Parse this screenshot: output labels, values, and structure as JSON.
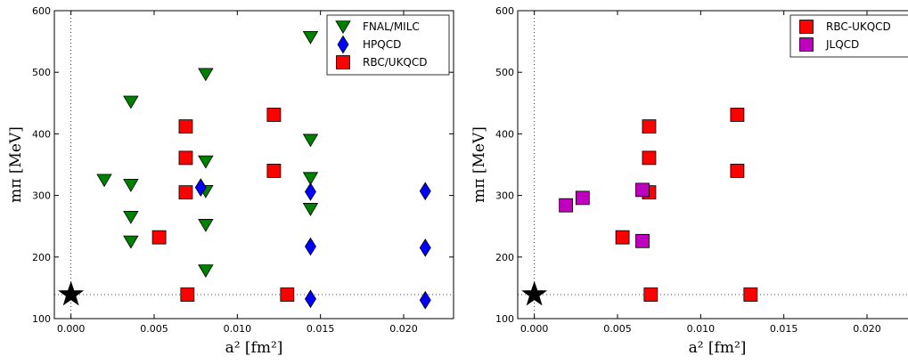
{
  "chart_data": [
    {
      "type": "scatter",
      "xlabel": "a² [fm²]",
      "ylabel": "mπ [MeV]",
      "xlim": [
        -0.001,
        0.023
      ],
      "ylim": [
        100,
        600
      ],
      "x_ticks": [
        "0.000",
        "0.005",
        "0.010",
        "0.015",
        "0.020"
      ],
      "y_ticks": [
        "100",
        "200",
        "300",
        "400",
        "500",
        "600"
      ],
      "legend_placement": "top-right",
      "reference_lines": {
        "x": 0.0,
        "y": 139
      },
      "physical_point": {
        "x": 0.0,
        "y": 139,
        "marker": "star",
        "color": "#000000"
      },
      "series": [
        {
          "name": "FNAL/MILC",
          "marker": "triangle-down",
          "color": "#008000",
          "points": [
            [
              0.002,
              325
            ],
            [
              0.0036,
              452
            ],
            [
              0.0036,
              317
            ],
            [
              0.0036,
              265
            ],
            [
              0.0036,
              225
            ],
            [
              0.0081,
              497
            ],
            [
              0.0081,
              355
            ],
            [
              0.0081,
              307
            ],
            [
              0.0081,
              252
            ],
            [
              0.0081,
              178
            ],
            [
              0.0144,
              557
            ],
            [
              0.0144,
              390
            ],
            [
              0.0144,
              328
            ],
            [
              0.0144,
              278
            ]
          ]
        },
        {
          "name": "HPQCD",
          "marker": "diamond",
          "color": "#0000ff",
          "points": [
            [
              0.0078,
              313
            ],
            [
              0.0144,
              306
            ],
            [
              0.0144,
              217
            ],
            [
              0.0144,
              132
            ],
            [
              0.0213,
              307
            ],
            [
              0.0213,
              215
            ],
            [
              0.0213,
              130
            ]
          ]
        },
        {
          "name": "RBC/UKQCD",
          "marker": "square",
          "color": "#ff0000",
          "points": [
            [
              0.0053,
              232
            ],
            [
              0.0069,
              412
            ],
            [
              0.0069,
              361
            ],
            [
              0.0069,
              305
            ],
            [
              0.007,
              139
            ],
            [
              0.0122,
              431
            ],
            [
              0.0122,
              340
            ],
            [
              0.013,
              139
            ]
          ]
        }
      ]
    },
    {
      "type": "scatter",
      "xlabel": "a² [fm²]",
      "ylabel": "mπ [MeV]",
      "xlim": [
        -0.001,
        0.023
      ],
      "ylim": [
        100,
        600
      ],
      "x_ticks": [
        "0.000",
        "0.005",
        "0.010",
        "0.015",
        "0.020"
      ],
      "y_ticks": [
        "100",
        "200",
        "300",
        "400",
        "500",
        "600"
      ],
      "legend_placement": "top-right",
      "reference_lines": {
        "x": 0.0,
        "y": 139
      },
      "physical_point": {
        "x": 0.0,
        "y": 139,
        "marker": "star",
        "color": "#000000"
      },
      "series": [
        {
          "name": "RBC-UKQCD",
          "marker": "square",
          "color": "#ff0000",
          "points": [
            [
              0.0053,
              232
            ],
            [
              0.0069,
              412
            ],
            [
              0.0069,
              361
            ],
            [
              0.0069,
              305
            ],
            [
              0.007,
              139
            ],
            [
              0.0122,
              431
            ],
            [
              0.0122,
              340
            ],
            [
              0.013,
              139
            ]
          ]
        },
        {
          "name": "JLQCD",
          "marker": "square",
          "color": "#bf00bf",
          "points": [
            [
              0.0019,
              284
            ],
            [
              0.0029,
              296
            ],
            [
              0.0065,
              309
            ],
            [
              0.0065,
              226
            ]
          ]
        }
      ]
    }
  ]
}
